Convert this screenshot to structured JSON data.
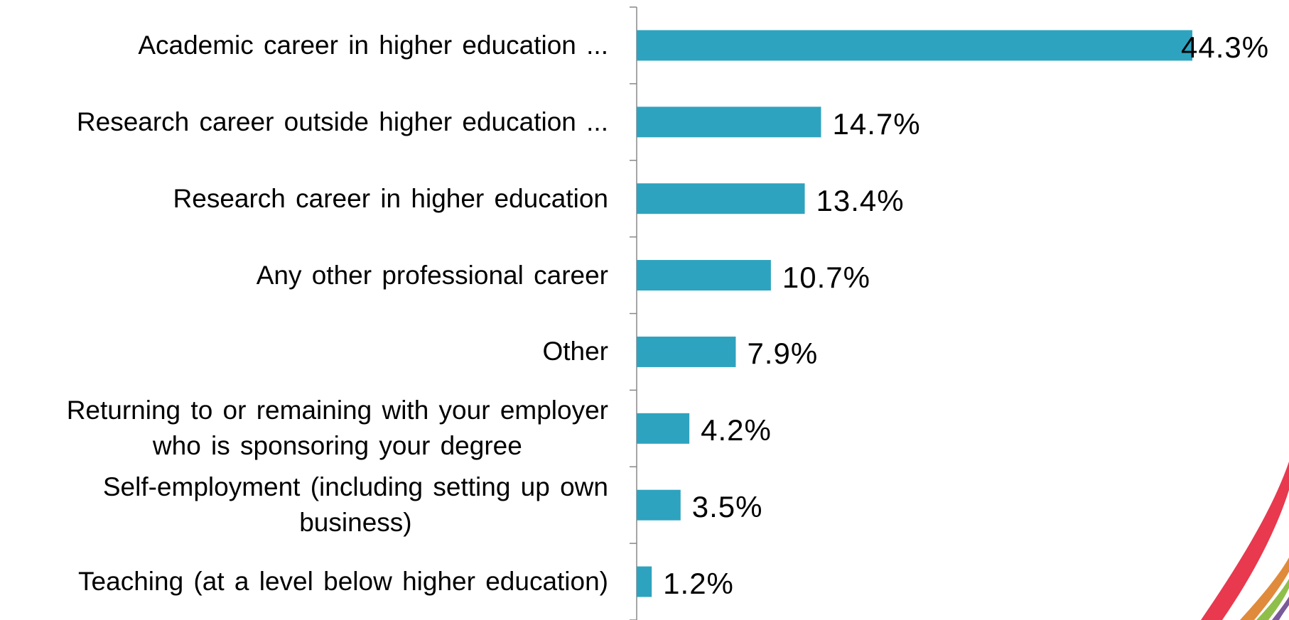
{
  "chart_data": {
    "type": "bar",
    "orientation": "horizontal",
    "color": "#2ea3bf",
    "categories": [
      "Academic career in higher education ...",
      "Research career outside higher education ...",
      "Research career in higher education",
      "Any other professional career",
      "Other",
      "Returning to or remaining with your employer\nwho is sponsoring your degree",
      "Self-employment (including setting up own\nbusiness)",
      "Teaching (at a level below higher education)"
    ],
    "values": [
      44.3,
      14.7,
      13.4,
      10.7,
      7.9,
      4.2,
      3.5,
      1.2
    ],
    "value_labels": [
      "44.3%",
      "14.7%",
      "13.4%",
      "10.7%",
      "7.9%",
      "4.2%",
      "3.5%",
      "1.2%"
    ]
  }
}
